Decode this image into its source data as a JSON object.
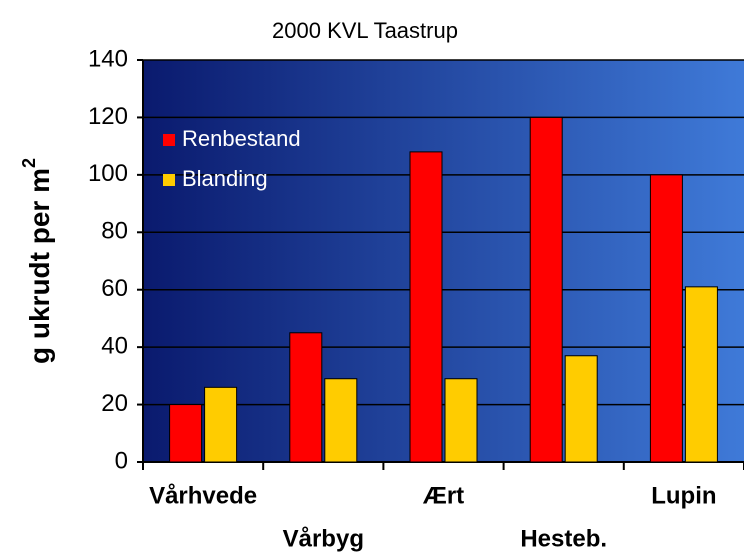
{
  "chart_data": {
    "type": "bar",
    "title": "2000 KVL Taastrup",
    "y_label": "g ukrudt per m",
    "y_label_superscript": "2",
    "categories": [
      "Vårhvede",
      "Vårbyg",
      "Ært",
      "Hesteb.",
      "Lupin"
    ],
    "series": [
      {
        "name": "Renbestand",
        "color": "#ff0000",
        "values": [
          20,
          45,
          108,
          120,
          100
        ]
      },
      {
        "name": "Blanding",
        "color": "#ffcc00",
        "values": [
          26,
          29,
          29,
          37,
          61
        ]
      }
    ],
    "ylim": [
      0,
      140
    ],
    "yticks": [
      0,
      20,
      40,
      60,
      80,
      100,
      120,
      140
    ],
    "grid": true,
    "legend": "top-left"
  }
}
